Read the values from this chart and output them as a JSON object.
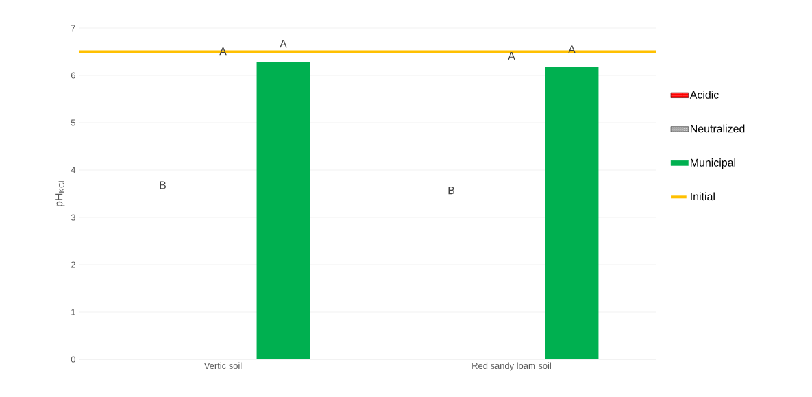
{
  "chart_data": {
    "type": "bar",
    "ylabel": "pH$_{KCl}$",
    "categories": [
      "Vertic soil",
      "Red sandy loam soil"
    ],
    "series": [
      {
        "name": "Acidic",
        "color": "#ff0000",
        "values": [
          null,
          null
        ]
      },
      {
        "name": "Neutralized",
        "color": "#a6a6a6",
        "values": [
          null,
          null
        ]
      },
      {
        "name": "Municipal",
        "color": "#00b050",
        "values": [
          6.28,
          6.18
        ]
      }
    ],
    "ylim": [
      0,
      7
    ],
    "yticks": [
      0,
      1,
      2,
      3,
      4,
      5,
      6,
      7
    ],
    "grid": "y",
    "legend": "right",
    "ref_lines": [
      {
        "axis": "y",
        "value": 6.5,
        "label": "Initial",
        "color": "#ffc000"
      }
    ],
    "annotations": [
      "B",
      "A",
      "A",
      "B",
      "A",
      "A"
    ]
  }
}
